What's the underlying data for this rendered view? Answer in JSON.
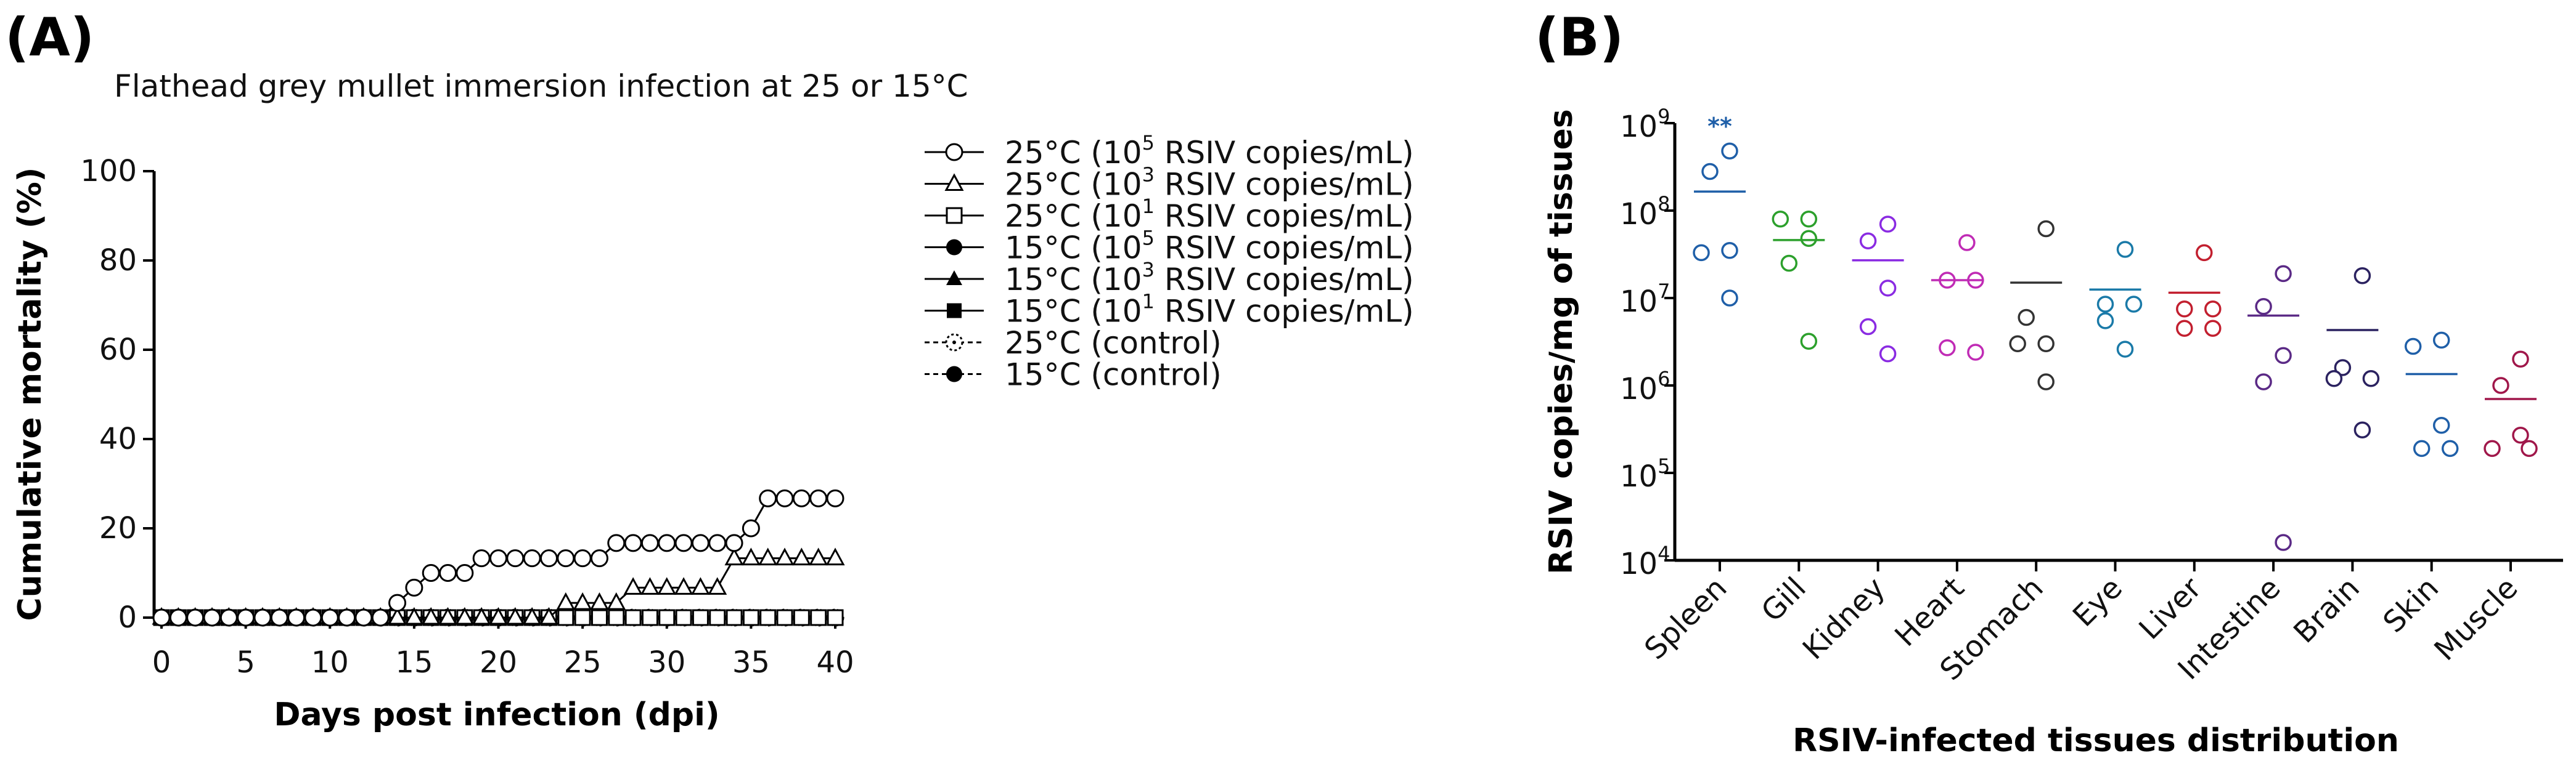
{
  "panels": {
    "a_label": "(A)",
    "b_label": "(B)"
  },
  "chart_data": [
    {
      "type": "line",
      "title": "Flathead grey mullet immersion infection at 25 or 15°C",
      "xlabel": "Days post infection (dpi)",
      "ylabel": "Cumulative mortality (%)",
      "xlim": [
        0,
        40
      ],
      "ylim": [
        0,
        100
      ],
      "xticks": [
        0,
        5,
        10,
        15,
        20,
        25,
        30,
        35,
        40
      ],
      "yticks": [
        0,
        20,
        40,
        60,
        80,
        100
      ],
      "legend_position": "right",
      "series": [
        {
          "name": "25°C (10^5 RSIV copies/mL)",
          "label_pre": "25°C (10",
          "label_exp": "5",
          "label_post": " RSIV copies/mL)",
          "marker": "circle-open",
          "line": "solid",
          "values": [
            0,
            0,
            0,
            0,
            0,
            0,
            0,
            0,
            0,
            0,
            0,
            0,
            0,
            0,
            3.3,
            6.7,
            10,
            10,
            10,
            13.3,
            13.3,
            13.3,
            13.3,
            13.3,
            13.3,
            13.3,
            13.3,
            16.7,
            16.7,
            16.7,
            16.7,
            16.7,
            16.7,
            16.7,
            16.7,
            20,
            26.7,
            26.7,
            26.7,
            26.7,
            26.7
          ]
        },
        {
          "name": "25°C (10^3 RSIV copies/mL)",
          "label_pre": "25°C (10",
          "label_exp": "3",
          "label_post": " RSIV copies/mL)",
          "marker": "triangle-open",
          "line": "solid",
          "values": [
            0,
            0,
            0,
            0,
            0,
            0,
            0,
            0,
            0,
            0,
            0,
            0,
            0,
            0,
            0,
            0,
            0,
            0,
            0,
            0,
            0,
            0,
            0,
            0,
            3.3,
            3.3,
            3.3,
            3.3,
            6.7,
            6.7,
            6.7,
            6.7,
            6.7,
            6.7,
            13.3,
            13.3,
            13.3,
            13.3,
            13.3,
            13.3,
            13.3
          ]
        },
        {
          "name": "25°C (10^1 RSIV copies/mL)",
          "label_pre": "25°C (10",
          "label_exp": "1",
          "label_post": " RSIV copies/mL)",
          "marker": "square-open",
          "line": "solid",
          "values": [
            0,
            0,
            0,
            0,
            0,
            0,
            0,
            0,
            0,
            0,
            0,
            0,
            0,
            0,
            0,
            0,
            0,
            0,
            0,
            0,
            0,
            0,
            0,
            0,
            0,
            0,
            0,
            0,
            0,
            0,
            0,
            0,
            0,
            0,
            0,
            0,
            0,
            0,
            0,
            0,
            0
          ]
        },
        {
          "name": "15°C (10^5 RSIV copies/mL)",
          "label_pre": "15°C (10",
          "label_exp": "5",
          "label_post": " RSIV copies/mL)",
          "marker": "circle-filled",
          "line": "solid",
          "values": [
            0,
            0,
            0,
            0,
            0,
            0,
            0,
            0,
            0,
            0,
            0,
            0,
            0,
            0,
            0,
            0,
            0,
            0,
            0,
            0,
            0,
            0,
            0,
            0,
            0,
            0,
            0,
            0,
            0,
            0,
            0,
            0,
            0,
            0,
            0,
            0,
            0,
            0,
            0,
            0,
            0
          ]
        },
        {
          "name": "15°C (10^3 RSIV copies/mL)",
          "label_pre": "15°C (10",
          "label_exp": "3",
          "label_post": " RSIV copies/mL)",
          "marker": "triangle-filled",
          "line": "solid",
          "values": [
            0,
            0,
            0,
            0,
            0,
            0,
            0,
            0,
            0,
            0,
            0,
            0,
            0,
            0,
            0,
            0,
            0,
            0,
            0,
            0,
            0,
            0,
            0,
            0,
            0,
            0,
            0,
            0,
            0,
            0,
            0,
            0,
            0,
            0,
            0,
            0,
            0,
            0,
            0,
            0,
            0
          ]
        },
        {
          "name": "15°C (10^1 RSIV copies/mL)",
          "label_pre": "15°C (10",
          "label_exp": "1",
          "label_post": " RSIV copies/mL)",
          "marker": "square-filled",
          "line": "solid",
          "values": [
            0,
            0,
            0,
            0,
            0,
            0,
            0,
            0,
            0,
            0,
            0,
            0,
            0,
            0,
            0,
            0,
            0,
            0,
            0,
            0,
            0,
            0,
            0,
            0,
            0,
            0,
            0,
            0,
            0,
            0,
            0,
            0,
            0,
            0,
            0,
            0,
            0,
            0,
            0,
            0,
            0
          ]
        },
        {
          "name": "25°C (control)",
          "label_pre": "25°C (control)",
          "label_exp": "",
          "label_post": "",
          "marker": "circle-dotted",
          "line": "dashed",
          "values": [
            0,
            0,
            0,
            0,
            0,
            0,
            0,
            0,
            0,
            0,
            0,
            0,
            0,
            0,
            0,
            0,
            0,
            0,
            0,
            0,
            0,
            0,
            0,
            0,
            0,
            0,
            0,
            0,
            0,
            0,
            0,
            0,
            0,
            0,
            0,
            0,
            0,
            0,
            0,
            0,
            0
          ]
        },
        {
          "name": "15°C (control)",
          "label_pre": "15°C (control)",
          "label_exp": "",
          "label_post": "",
          "marker": "circle-filled",
          "line": "dashed",
          "values": [
            0,
            0,
            0,
            0,
            0,
            0,
            0,
            0,
            0,
            0,
            0,
            0,
            0,
            0,
            0,
            0,
            0,
            0,
            0,
            0,
            0,
            0,
            0,
            0,
            0,
            0,
            0,
            0,
            0,
            0,
            0,
            0,
            0,
            0,
            0,
            0,
            0,
            0,
            0,
            0,
            0
          ]
        }
      ]
    },
    {
      "type": "scatter",
      "xlabel": "RSIV-infected tissues distribution",
      "ylabel": "RSIV copies/mg of tissues",
      "yscale": "log",
      "ylim": [
        10000,
        1000000000
      ],
      "ytick_exponents": [
        4,
        5,
        6,
        7,
        8,
        9
      ],
      "ytick_base": "10",
      "categories": [
        "Spleen",
        "Gill",
        "Kidney",
        "Heart",
        "Stomach",
        "Eye",
        "Liver",
        "Intestine",
        "Brain",
        "Skin",
        "Muscle"
      ],
      "colors": [
        "#1f5fa8",
        "#2ca02c",
        "#8a2be2",
        "#c02bb5",
        "#333333",
        "#1a7aa8",
        "#c21f2f",
        "#5b2a86",
        "#2b2260",
        "#1f5fa8",
        "#a0174a"
      ],
      "points": [
        [
          480000000,
          280000000,
          35000000,
          33000000,
          10000000
        ],
        [
          80000000,
          80000000,
          48000000,
          25000000,
          3200000
        ],
        [
          70000000,
          45000000,
          13000000,
          4700000,
          2300000
        ],
        [
          43000000,
          16000000,
          16000000,
          2700000,
          2400000
        ],
        [
          62000000,
          6000000,
          3000000,
          3000000,
          1100000
        ],
        [
          36000000,
          8500000,
          8500000,
          5500000,
          2600000
        ],
        [
          33000000,
          7500000,
          7500000,
          4500000,
          4500000
        ],
        [
          19000000,
          8000000,
          2200000,
          1100000,
          16000
        ],
        [
          18000000,
          1600000,
          1200000,
          1200000,
          310000
        ],
        [
          3300000,
          2800000,
          350000,
          190000,
          190000
        ],
        [
          2000000,
          1000000,
          270000,
          190000,
          190000
        ]
      ],
      "means": [
        165000000,
        46000000,
        27000000,
        16000000,
        15000000,
        12500000,
        11500000,
        6300000,
        4300000,
        1350000,
        700000
      ],
      "annotations": [
        {
          "category": "Spleen",
          "text": "**"
        }
      ]
    }
  ]
}
